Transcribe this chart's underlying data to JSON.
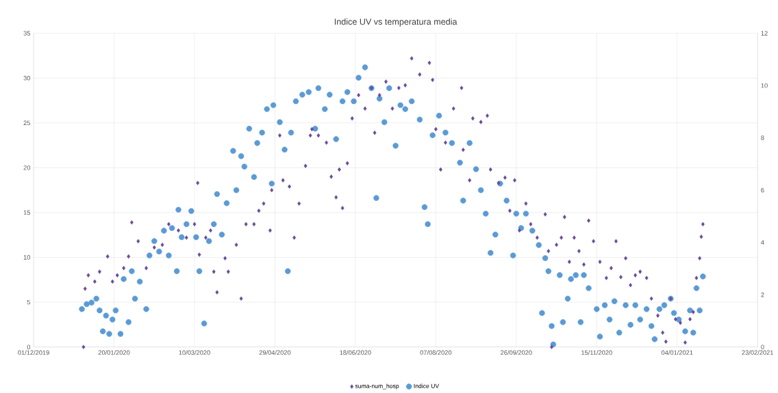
{
  "chart_data": {
    "type": "scatter",
    "title": "Indice UV vs temperatura media",
    "xlim": [
      "2019-12-01",
      "2021-02-23"
    ],
    "xticks": [
      {
        "value": "2019-12-01",
        "label": "01/12/2019"
      },
      {
        "value": "2020-01-20",
        "label": "20/01/2020"
      },
      {
        "value": "2020-03-10",
        "label": "10/03/2020"
      },
      {
        "value": "2020-04-29",
        "label": "29/04/2020"
      },
      {
        "value": "2020-06-18",
        "label": "18/06/2020"
      },
      {
        "value": "2020-08-07",
        "label": "07/08/2020"
      },
      {
        "value": "2020-09-26",
        "label": "26/09/2020"
      },
      {
        "value": "2020-11-15",
        "label": "15/11/2020"
      },
      {
        "value": "2021-01-04",
        "label": "04/01/2021"
      },
      {
        "value": "2021-02-23",
        "label": "23/02/2021"
      }
    ],
    "ylim": [
      0,
      35
    ],
    "yticks": [
      0,
      5,
      10,
      15,
      20,
      25,
      30,
      35
    ],
    "y2lim": [
      0,
      12
    ],
    "y2ticks": [
      0,
      2,
      4,
      6,
      8,
      10,
      12
    ],
    "grid": true,
    "legend": "bottom",
    "series": [
      {
        "name": "suma-num_hosp",
        "color": "#6a4a9c",
        "marker": "diamond",
        "x": [
          "2020-01-01",
          "2020-01-02",
          "2020-01-04",
          "2020-01-08",
          "2020-01-11",
          "2020-01-16",
          "2020-01-19",
          "2020-01-22",
          "2020-01-26",
          "2020-01-29",
          "2020-01-31",
          "2020-02-04",
          "2020-02-09",
          "2020-02-14",
          "2020-02-19",
          "2020-02-23",
          "2020-02-29",
          "2020-03-05",
          "2020-03-10",
          "2020-03-12",
          "2020-03-13",
          "2020-03-17",
          "2020-03-20",
          "2020-03-22",
          "2020-03-24",
          "2020-03-29",
          "2020-03-31",
          "2020-04-05",
          "2020-04-08",
          "2020-04-11",
          "2020-04-16",
          "2020-04-19",
          "2020-04-22",
          "2020-04-26",
          "2020-04-27",
          "2020-05-02",
          "2020-05-04",
          "2020-05-08",
          "2020-05-11",
          "2020-05-14",
          "2020-05-18",
          "2020-05-21",
          "2020-05-22",
          "2020-05-26",
          "2020-05-31",
          "2020-06-03",
          "2020-06-06",
          "2020-06-08",
          "2020-06-10",
          "2020-06-13",
          "2020-06-16",
          "2020-06-20",
          "2020-06-24",
          "2020-06-28",
          "2020-06-30",
          "2020-07-03",
          "2020-07-07",
          "2020-07-11",
          "2020-07-15",
          "2020-07-19",
          "2020-07-23",
          "2020-07-28",
          "2020-08-03",
          "2020-08-05",
          "2020-08-07",
          "2020-08-10",
          "2020-08-13",
          "2020-08-18",
          "2020-08-23",
          "2020-08-24",
          "2020-08-28",
          "2020-08-30",
          "2020-09-04",
          "2020-09-08",
          "2020-09-10",
          "2020-09-15",
          "2020-09-19",
          "2020-09-22",
          "2020-09-25",
          "2020-09-28",
          "2020-10-02",
          "2020-10-05",
          "2020-10-09",
          "2020-10-14",
          "2020-10-16",
          "2020-10-18",
          "2020-10-21",
          "2020-10-24",
          "2020-10-26",
          "2020-10-29",
          "2020-11-01",
          "2020-11-04",
          "2020-11-07",
          "2020-11-10",
          "2020-11-13",
          "2020-11-17",
          "2020-11-21",
          "2020-11-24",
          "2020-11-27",
          "2020-11-30",
          "2020-12-03",
          "2020-12-06",
          "2020-12-09",
          "2020-12-12",
          "2020-12-16",
          "2020-12-19",
          "2020-12-23",
          "2020-12-26",
          "2020-12-28",
          "2020-12-31",
          "2021-01-03",
          "2021-01-06",
          "2021-01-09",
          "2021-01-12",
          "2021-01-14",
          "2021-01-16",
          "2021-01-18",
          "2021-01-19",
          "2021-01-20"
        ],
        "values": [
          0,
          6.5,
          8.0,
          7.3,
          8.4,
          10.1,
          7.3,
          8.0,
          8.8,
          10.1,
          13.9,
          11.8,
          8.8,
          11.1,
          11.4,
          13.7,
          13.0,
          12.2,
          13.7,
          18.3,
          10.3,
          12.2,
          13.0,
          8.4,
          6.1,
          9.9,
          8.4,
          11.4,
          5.4,
          13.7,
          13.7,
          15.2,
          16.0,
          13.0,
          17.5,
          23.6,
          18.6,
          17.9,
          12.2,
          16.0,
          20.2,
          23.6,
          24.3,
          23.6,
          22.8,
          19.0,
          16.7,
          19.8,
          15.5,
          20.5,
          25.5,
          28.1,
          26.6,
          28.9,
          23.9,
          28.1,
          29.6,
          26.6,
          28.9,
          29.2,
          32.2,
          30.4,
          31.7,
          29.8,
          24.3,
          19.8,
          22.8,
          26.6,
          28.9,
          22.0,
          18.6,
          25.5,
          25.1,
          25.8,
          19.8,
          18.3,
          18.9,
          15.2,
          18.6,
          13.0,
          16.0,
          13.7,
          12.2,
          14.8,
          10.7,
          0,
          11.4,
          12.2,
          14.5,
          9.5,
          12.2,
          10.7,
          9.2,
          14.1,
          11.8,
          9.5,
          7.7,
          8.8,
          11.8,
          7.8,
          9.9,
          6.9,
          8.0,
          8.4,
          7.7,
          5.4,
          3.5,
          1.6,
          0.6,
          5.4,
          3.1,
          2.7,
          0.5,
          3.1,
          3.9,
          7.7,
          9.9,
          12.3,
          13.7
        ]
      },
      {
        "name": "Indice UV",
        "color": "#5b9bd5",
        "marker": "circle",
        "axis": "y2",
        "x": [
          "2019-12-31",
          "2020-01-03",
          "2020-01-06",
          "2020-01-09",
          "2020-01-11",
          "2020-01-13",
          "2020-01-15",
          "2020-01-17",
          "2020-01-19",
          "2020-01-21",
          "2020-01-24",
          "2020-01-26",
          "2020-01-29",
          "2020-01-31",
          "2020-02-02",
          "2020-02-05",
          "2020-02-09",
          "2020-02-11",
          "2020-02-14",
          "2020-02-17",
          "2020-02-20",
          "2020-02-23",
          "2020-02-25",
          "2020-02-28",
          "2020-02-29",
          "2020-03-02",
          "2020-03-05",
          "2020-03-08",
          "2020-03-11",
          "2020-03-13",
          "2020-03-16",
          "2020-03-19",
          "2020-03-22",
          "2020-03-24",
          "2020-03-27",
          "2020-03-30",
          "2020-04-03",
          "2020-04-05",
          "2020-04-08",
          "2020-04-10",
          "2020-04-13",
          "2020-04-16",
          "2020-04-18",
          "2020-04-21",
          "2020-04-24",
          "2020-04-27",
          "2020-04-28",
          "2020-05-02",
          "2020-05-05",
          "2020-05-07",
          "2020-05-09",
          "2020-05-12",
          "2020-05-16",
          "2020-05-20",
          "2020-05-24",
          "2020-05-26",
          "2020-05-30",
          "2020-06-02",
          "2020-06-06",
          "2020-06-10",
          "2020-06-13",
          "2020-06-17",
          "2020-06-20",
          "2020-06-24",
          "2020-06-28",
          "2020-07-01",
          "2020-07-03",
          "2020-07-06",
          "2020-07-09",
          "2020-07-13",
          "2020-07-16",
          "2020-07-19",
          "2020-07-23",
          "2020-07-28",
          "2020-07-31",
          "2020-08-02",
          "2020-08-05",
          "2020-08-09",
          "2020-08-13",
          "2020-08-17",
          "2020-08-22",
          "2020-08-24",
          "2020-08-28",
          "2020-09-01",
          "2020-09-04",
          "2020-09-07",
          "2020-09-10",
          "2020-09-13",
          "2020-09-16",
          "2020-09-20",
          "2020-09-24",
          "2020-09-26",
          "2020-09-29",
          "2020-10-02",
          "2020-10-06",
          "2020-10-10",
          "2020-10-12",
          "2020-10-14",
          "2020-10-16",
          "2020-10-18",
          "2020-10-19",
          "2020-10-23",
          "2020-10-25",
          "2020-10-28",
          "2020-10-30",
          "2020-11-02",
          "2020-11-05",
          "2020-11-07",
          "2020-11-10",
          "2020-11-15",
          "2020-11-17",
          "2020-11-20",
          "2020-11-23",
          "2020-11-26",
          "2020-11-29",
          "2020-12-03",
          "2020-12-06",
          "2020-12-09",
          "2020-12-12",
          "2020-12-16",
          "2020-12-19",
          "2020-12-21",
          "2020-12-24",
          "2020-12-27",
          "2020-12-31",
          "2021-01-02",
          "2021-01-05",
          "2021-01-09",
          "2021-01-12",
          "2021-01-14",
          "2021-01-16",
          "2021-01-18",
          "2021-01-20"
        ],
        "values": [
          1.45,
          1.64,
          1.7,
          1.85,
          1.4,
          0.6,
          1.2,
          0.5,
          1.05,
          1.4,
          0.5,
          2.6,
          0.95,
          2.9,
          1.85,
          2.5,
          1.45,
          3.5,
          4.05,
          3.65,
          4.45,
          3.5,
          4.55,
          2.9,
          5.25,
          4.2,
          4.7,
          5.2,
          4.2,
          2.9,
          0.9,
          4.05,
          4.7,
          5.85,
          4.3,
          5.5,
          7.5,
          6.0,
          7.3,
          6.9,
          8.35,
          6.5,
          7.8,
          8.2,
          9.1,
          6.25,
          9.25,
          8.6,
          7.55,
          2.9,
          8.2,
          9.4,
          9.65,
          9.75,
          8.35,
          9.9,
          9.1,
          9.65,
          7.95,
          9.4,
          9.75,
          9.4,
          10.3,
          10.7,
          9.9,
          5.7,
          9.5,
          8.6,
          9.9,
          7.7,
          9.25,
          9.1,
          9.4,
          8.7,
          5.35,
          4.7,
          8.1,
          8.85,
          8.2,
          7.8,
          7.05,
          5.6,
          7.8,
          6.8,
          6.0,
          5.1,
          3.6,
          4.3,
          6.25,
          5.6,
          3.5,
          5.1,
          4.55,
          5.1,
          4.45,
          3.9,
          1.3,
          3.4,
          2.9,
          0.8,
          0.1,
          2.75,
          0.95,
          1.85,
          2.6,
          2.75,
          0.95,
          2.75,
          2.25,
          1.45,
          0.4,
          1.6,
          1.05,
          1.75,
          0.55,
          1.6,
          0.85,
          1.6,
          1.05,
          1.45,
          0.8,
          0.3,
          1.45,
          1.6,
          1.85,
          1.3,
          1.05,
          0.6,
          1.4,
          0.55,
          2.25,
          1.4,
          2.7
        ]
      }
    ]
  }
}
